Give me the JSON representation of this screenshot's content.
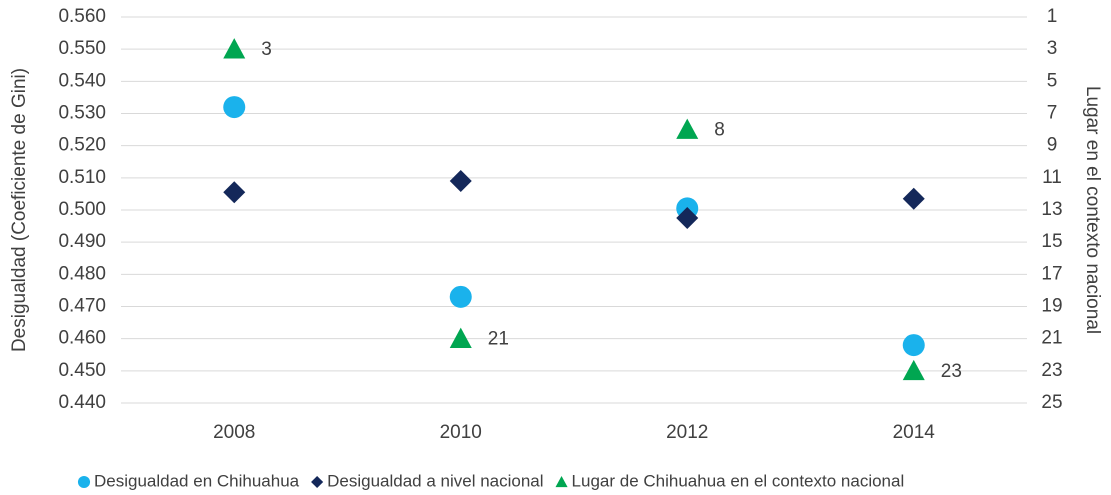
{
  "chart_data": {
    "type": "scatter",
    "categories": [
      "2008",
      "2010",
      "2012",
      "2014"
    ],
    "y_label": "Desigualdad (Coeficiente de Gini)",
    "y2_label": "Lugar en el contexto nacional",
    "ylim": [
      0.44,
      0.56
    ],
    "yticks": [
      {
        "value": 0.44,
        "label": "0.440"
      },
      {
        "value": 0.45,
        "label": "0.450"
      },
      {
        "value": 0.46,
        "label": "0.460"
      },
      {
        "value": 0.47,
        "label": "0.470"
      },
      {
        "value": 0.48,
        "label": "0.480"
      },
      {
        "value": 0.49,
        "label": "0.490"
      },
      {
        "value": 0.5,
        "label": "0.500"
      },
      {
        "value": 0.51,
        "label": "0.510"
      },
      {
        "value": 0.52,
        "label": "0.520"
      },
      {
        "value": 0.53,
        "label": "0.530"
      },
      {
        "value": 0.54,
        "label": "0.540"
      },
      {
        "value": 0.55,
        "label": "0.550"
      },
      {
        "value": 0.56,
        "label": "0.560"
      }
    ],
    "y2lim": [
      25,
      1
    ],
    "y2ticks": [
      1,
      3,
      5,
      7,
      9,
      11,
      13,
      15,
      17,
      19,
      21,
      23,
      25
    ],
    "grid": true,
    "legend": "bottom",
    "series": [
      {
        "name": "Desigualdad en Chihuahua",
        "color": "#1ab2ec",
        "marker": "circle",
        "values": [
          0.532,
          0.473,
          0.5005,
          0.458
        ]
      },
      {
        "name": "Desigualdad a nivel nacional",
        "color": "#14285a",
        "marker": "diamond",
        "values": [
          0.5055,
          0.509,
          0.4975,
          0.5035
        ]
      },
      {
        "name": "Lugar de Chihuahua en el contexto nacional",
        "color": "#00a651",
        "marker": "triangle",
        "axis": "y2",
        "values": [
          3,
          21,
          8,
          23
        ],
        "show_labels": true
      }
    ]
  }
}
